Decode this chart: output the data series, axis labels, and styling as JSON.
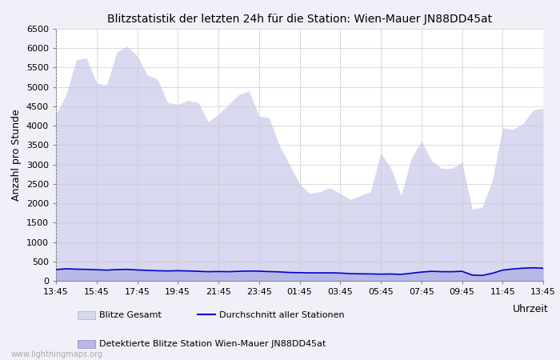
{
  "title": "Blitzstatistik der letzten 24h für die Station: Wien-Mauer JN88DD45at",
  "ylabel": "Anzahl pro Stunde",
  "xlabel": "Uhrzeit",
  "background_color": "#f0f0f8",
  "plot_bg_color": "#ffffff",
  "ylim": [
    0,
    6500
  ],
  "yticks": [
    0,
    500,
    1000,
    1500,
    2000,
    2500,
    3000,
    3500,
    4000,
    4500,
    5000,
    5500,
    6000,
    6500
  ],
  "x_labels": [
    "13:45",
    "15:45",
    "17:45",
    "19:45",
    "21:45",
    "23:45",
    "01:45",
    "03:45",
    "05:45",
    "07:45",
    "09:45",
    "11:45",
    "13:45"
  ],
  "color_gesamt_fill": "#d8d8f0",
  "color_detektiert_fill": "#b8b8e8",
  "color_avg_line": "#0000cc",
  "legend_gesamt": "Blitze Gesamt",
  "legend_detektiert": "Detektierte Blitze Station Wien-Mauer JN88DD45at",
  "legend_avg": "Durchschnitt aller Stationen",
  "watermark": "www.lightningmaps.org",
  "x_points": [
    0,
    1,
    2,
    3,
    4,
    5,
    6,
    7,
    8,
    9,
    10,
    11,
    12,
    13,
    14,
    15,
    16,
    17,
    18,
    19,
    20,
    21,
    22,
    23,
    24,
    25,
    26,
    27,
    28,
    29,
    30,
    31,
    32,
    33,
    34,
    35,
    36,
    37,
    38,
    39,
    40,
    41,
    42,
    43,
    44,
    45,
    46,
    47,
    48
  ],
  "gesamt": [
    4300,
    4800,
    5700,
    5750,
    5100,
    5050,
    5900,
    6050,
    5800,
    5300,
    5200,
    4600,
    4550,
    4650,
    4600,
    4100,
    4300,
    4550,
    4800,
    4900,
    4250,
    4200,
    3500,
    3000,
    2500,
    2250,
    2300,
    2400,
    2250,
    2100,
    2200,
    2300,
    3300,
    2900,
    2200,
    3150,
    3600,
    3100,
    2900,
    2900,
    3050,
    1850,
    1900,
    2600,
    3950,
    3900,
    4050,
    4400,
    4450
  ],
  "detektiert": [
    300,
    320,
    310,
    300,
    290,
    280,
    300,
    310,
    290,
    280,
    270,
    260,
    270,
    260,
    250,
    240,
    245,
    240,
    250,
    260,
    255,
    245,
    235,
    220,
    215,
    210,
    210,
    210,
    205,
    190,
    185,
    180,
    175,
    180,
    170,
    200,
    230,
    250,
    240,
    240,
    250,
    150,
    140,
    200,
    280,
    310,
    330,
    340,
    330
  ],
  "avg": [
    290,
    310,
    300,
    295,
    285,
    275,
    290,
    295,
    280,
    270,
    260,
    255,
    260,
    255,
    245,
    235,
    240,
    235,
    245,
    252,
    248,
    238,
    230,
    215,
    210,
    205,
    205,
    205,
    200,
    185,
    180,
    177,
    172,
    176,
    166,
    195,
    225,
    245,
    235,
    235,
    245,
    148,
    138,
    195,
    275,
    305,
    325,
    336,
    325
  ]
}
